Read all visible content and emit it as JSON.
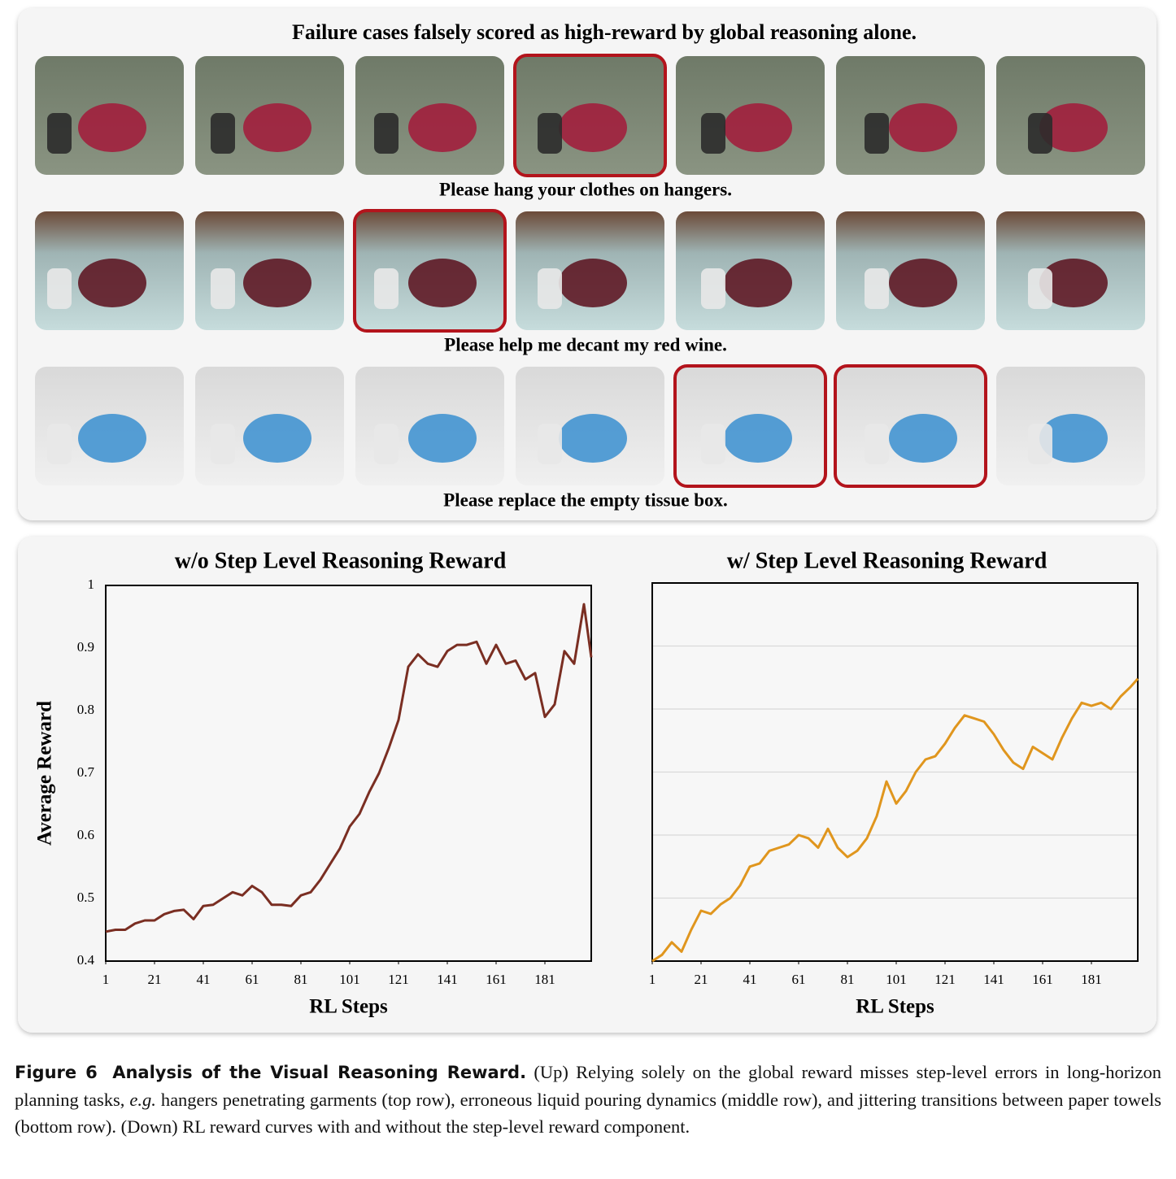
{
  "top_panel": {
    "title": "Failure cases falsely scored as high-reward by global reasoning alone.",
    "rows": [
      {
        "caption": "Please hang your clothes on hangers.",
        "highlight": [
          false,
          false,
          false,
          true,
          false,
          false,
          false
        ]
      },
      {
        "caption": "Please help me decant my red wine.",
        "highlight": [
          false,
          false,
          true,
          false,
          false,
          false,
          false
        ]
      },
      {
        "caption": "Please replace the empty tissue box.",
        "highlight": [
          false,
          false,
          false,
          false,
          true,
          true,
          false
        ]
      }
    ]
  },
  "chart_data": [
    {
      "type": "line",
      "title": "w/o Step Level Reasoning Reward",
      "xlabel": "RL Steps",
      "ylabel": "Average Reward",
      "x": [
        1,
        5,
        9,
        13,
        17,
        21,
        25,
        29,
        33,
        37,
        41,
        45,
        49,
        53,
        57,
        61,
        65,
        69,
        73,
        77,
        81,
        85,
        89,
        93,
        97,
        101,
        105,
        109,
        113,
        117,
        121,
        125,
        129,
        133,
        137,
        141,
        145,
        149,
        153,
        157,
        161,
        165,
        169,
        173,
        177,
        181,
        185,
        189,
        193,
        197,
        200
      ],
      "series": [
        {
          "color": "#7a2e22",
          "values": [
            0.447,
            0.45,
            0.45,
            0.46,
            0.465,
            0.465,
            0.475,
            0.48,
            0.482,
            0.467,
            0.488,
            0.49,
            0.5,
            0.51,
            0.505,
            0.52,
            0.51,
            0.49,
            0.49,
            0.488,
            0.505,
            0.51,
            0.53,
            0.555,
            0.58,
            0.615,
            0.635,
            0.67,
            0.7,
            0.74,
            0.785,
            0.87,
            0.89,
            0.875,
            0.87,
            0.895,
            0.905,
            0.905,
            0.91,
            0.875,
            0.905,
            0.875,
            0.88,
            0.85,
            0.86,
            0.79,
            0.81,
            0.895,
            0.875,
            0.97,
            0.885
          ]
        }
      ],
      "xlim": [
        1,
        200
      ],
      "xticks": [
        1,
        21,
        41,
        61,
        81,
        101,
        121,
        141,
        161,
        181
      ],
      "ylim": [
        0.4,
        1
      ],
      "yticks": [
        0.4,
        0.5,
        0.6,
        0.7,
        0.8,
        0.9,
        1
      ],
      "grid": false
    },
    {
      "type": "line",
      "title": "w/ Step Level Reasoning Reward",
      "xlabel": "RL Steps",
      "x": [
        1,
        5,
        9,
        13,
        17,
        21,
        25,
        29,
        33,
        37,
        41,
        45,
        49,
        53,
        57,
        61,
        65,
        69,
        73,
        77,
        81,
        85,
        89,
        93,
        97,
        101,
        105,
        109,
        113,
        117,
        121,
        125,
        129,
        133,
        137,
        141,
        145,
        149,
        153,
        157,
        161,
        165,
        169,
        173,
        177,
        181,
        185,
        189,
        193,
        197,
        200
      ],
      "series": [
        {
          "color": "#e0961e",
          "values": [
            0.4,
            0.41,
            0.43,
            0.415,
            0.45,
            0.48,
            0.475,
            0.49,
            0.5,
            0.52,
            0.55,
            0.555,
            0.575,
            0.58,
            0.585,
            0.6,
            0.595,
            0.58,
            0.61,
            0.58,
            0.565,
            0.575,
            0.595,
            0.63,
            0.685,
            0.65,
            0.67,
            0.7,
            0.72,
            0.725,
            0.745,
            0.77,
            0.79,
            0.785,
            0.78,
            0.76,
            0.735,
            0.715,
            0.705,
            0.74,
            0.73,
            0.72,
            0.755,
            0.785,
            0.81,
            0.805,
            0.81,
            0.8,
            0.82,
            0.835,
            0.848
          ]
        }
      ],
      "xlim": [
        1,
        200
      ],
      "xticks": [
        1,
        21,
        41,
        61,
        81,
        101,
        121,
        141,
        161,
        181
      ],
      "ylim": [
        0.4,
        1
      ],
      "yticks": [
        0.4,
        0.5,
        0.6,
        0.7,
        0.8,
        0.9,
        1
      ],
      "grid": true,
      "ytick_labels": false
    }
  ],
  "caption": {
    "label": "Figure 6",
    "heading": "Analysis of the Visual Reasoning Reward.",
    "text_before": "(Up) Relying solely on the global reward misses step-level errors in long-horizon planning tasks,",
    "emphasis": "e.g.",
    "text_after": "hangers penetrating garments (top row), erroneous liquid pouring dynamics (middle row), and jittering transitions between paper towels (bottom row). (Down) RL reward curves with and without the step-level reward component."
  }
}
